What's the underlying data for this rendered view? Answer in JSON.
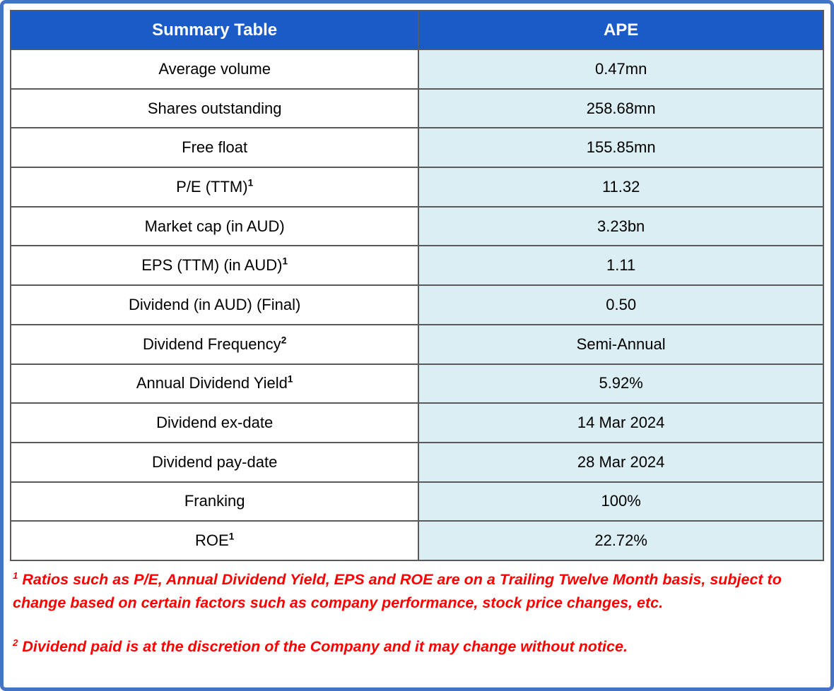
{
  "table": {
    "header": {
      "left": "Summary Table",
      "right": "APE"
    },
    "rows": [
      {
        "label": "Average volume",
        "sup": "",
        "value": "0.47mn"
      },
      {
        "label": "Shares outstanding",
        "sup": "",
        "value": "258.68mn"
      },
      {
        "label": "Free float",
        "sup": "",
        "value": "155.85mn"
      },
      {
        "label": "P/E (TTM)",
        "sup": "1",
        "value": "11.32"
      },
      {
        "label": "Market cap (in AUD)",
        "sup": "",
        "value": "3.23bn"
      },
      {
        "label": "EPS (TTM) (in AUD)",
        "sup": "1",
        "value": "1.11"
      },
      {
        "label": "Dividend (in AUD) (Final)",
        "sup": "",
        "value": "0.50"
      },
      {
        "label": "Dividend Frequency",
        "sup": "2",
        "value": "Semi-Annual"
      },
      {
        "label": "Annual Dividend Yield",
        "sup": "1",
        "value": "5.92%"
      },
      {
        "label": "Dividend ex-date",
        "sup": "",
        "value": "14 Mar 2024"
      },
      {
        "label": "Dividend pay-date",
        "sup": "",
        "value": "28 Mar 2024"
      },
      {
        "label": "Franking",
        "sup": "",
        "value": "100%"
      },
      {
        "label": "ROE",
        "sup": "1",
        "value": "22.72%"
      }
    ]
  },
  "footnotes": [
    {
      "marker": "1",
      "text": "Ratios such as P/E, Annual Dividend Yield, EPS and ROE are on a Trailing Twelve Month basis, subject to change based on certain factors such as company performance, stock price changes, etc."
    },
    {
      "marker": "2",
      "text": "Dividend paid is at the discretion of the Company and it may change without notice."
    }
  ],
  "colors": {
    "header_blue": "#1A5BC8",
    "value_tint": "#DAEEF3",
    "outer_border_blue": "#4472C4",
    "grid_gray": "#595959",
    "footnote_red": "#FF0000"
  }
}
